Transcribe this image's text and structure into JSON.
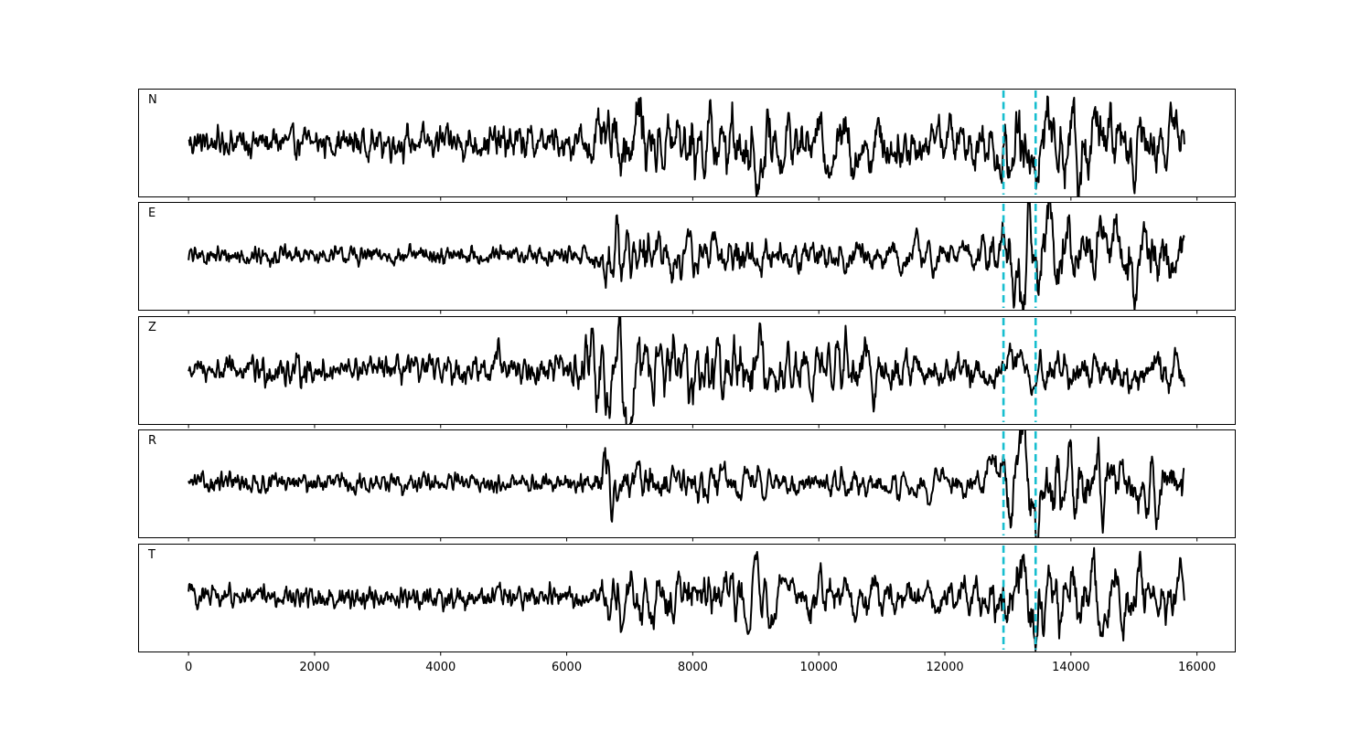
{
  "chart_data": {
    "type": "line",
    "title": "",
    "xlabel": "",
    "ylabel": "",
    "xlim": [
      -800,
      16600
    ],
    "xticks": [
      0,
      2000,
      4000,
      6000,
      8000,
      10000,
      12000,
      14000,
      16000
    ],
    "x_end": 15800,
    "grid": false,
    "legend": "none",
    "pick_lines": {
      "x": [
        12930,
        13440
      ],
      "color": "#17becf",
      "style": "dashed"
    },
    "line_color": "#000000",
    "panels": [
      {
        "label": "N",
        "ylim": [
          -1.1,
          1.1
        ],
        "envelope": [
          [
            0,
            0.25
          ],
          [
            6000,
            0.32
          ],
          [
            6600,
            0.5
          ],
          [
            7200,
            0.65
          ],
          [
            9000,
            0.7
          ],
          [
            12500,
            0.55
          ],
          [
            13300,
            0.95
          ],
          [
            15800,
            0.6
          ]
        ],
        "events": [
          [
            7150,
            0.6,
            60
          ],
          [
            9050,
            -0.6,
            70
          ],
          [
            11900,
            0.55,
            60
          ],
          [
            13250,
            -0.5,
            50
          ],
          [
            13380,
            -0.9,
            45
          ],
          [
            13620,
            0.85,
            50
          ],
          [
            14150,
            -0.75,
            60
          ],
          [
            15700,
            0.55,
            60
          ]
        ]
      },
      {
        "label": "E",
        "ylim": [
          -1.1,
          1.1
        ],
        "envelope": [
          [
            0,
            0.17
          ],
          [
            6300,
            0.17
          ],
          [
            6550,
            0.55
          ],
          [
            7300,
            0.45
          ],
          [
            12500,
            0.35
          ],
          [
            13100,
            0.9
          ],
          [
            15800,
            0.7
          ]
        ],
        "events": [
          [
            6600,
            -0.45,
            50
          ],
          [
            6800,
            0.4,
            60
          ],
          [
            13200,
            -0.8,
            50
          ],
          [
            13330,
            0.6,
            40
          ],
          [
            13500,
            -0.8,
            50
          ],
          [
            13650,
            0.85,
            60
          ],
          [
            14250,
            -0.4,
            60
          ]
        ]
      },
      {
        "label": "Z",
        "ylim": [
          -1.1,
          1.1
        ],
        "envelope": [
          [
            0,
            0.2
          ],
          [
            1600,
            0.3
          ],
          [
            2100,
            0.22
          ],
          [
            6000,
            0.28
          ],
          [
            6500,
            0.75
          ],
          [
            7500,
            0.65
          ],
          [
            10500,
            0.6
          ],
          [
            12500,
            0.4
          ],
          [
            15800,
            0.45
          ]
        ],
        "events": [
          [
            4900,
            0.5,
            50
          ],
          [
            6650,
            -0.85,
            60
          ],
          [
            6820,
            0.9,
            60
          ],
          [
            6950,
            -0.7,
            60
          ],
          [
            9050,
            0.7,
            60
          ],
          [
            15700,
            0.5,
            50
          ]
        ]
      },
      {
        "label": "R",
        "ylim": [
          -1.1,
          1.1
        ],
        "envelope": [
          [
            0,
            0.18
          ],
          [
            6400,
            0.18
          ],
          [
            6600,
            0.5
          ],
          [
            7500,
            0.35
          ],
          [
            12500,
            0.3
          ],
          [
            13150,
            0.85
          ],
          [
            15800,
            0.55
          ]
        ],
        "events": [
          [
            6620,
            0.5,
            50
          ],
          [
            13250,
            0.8,
            50
          ],
          [
            13480,
            -0.65,
            50
          ],
          [
            13700,
            -0.9,
            60
          ],
          [
            14000,
            0.5,
            60
          ]
        ]
      },
      {
        "label": "T",
        "ylim": [
          -1.1,
          1.1
        ],
        "envelope": [
          [
            0,
            0.2
          ],
          [
            6300,
            0.22
          ],
          [
            6700,
            0.45
          ],
          [
            8000,
            0.5
          ],
          [
            12500,
            0.4
          ],
          [
            13200,
            0.85
          ],
          [
            15800,
            0.55
          ]
        ],
        "events": [
          [
            30,
            0.35,
            40
          ],
          [
            9000,
            0.55,
            60
          ],
          [
            13280,
            0.8,
            40
          ],
          [
            13450,
            -0.55,
            40
          ],
          [
            13560,
            -0.9,
            40
          ],
          [
            14500,
            -0.5,
            60
          ]
        ]
      }
    ]
  }
}
